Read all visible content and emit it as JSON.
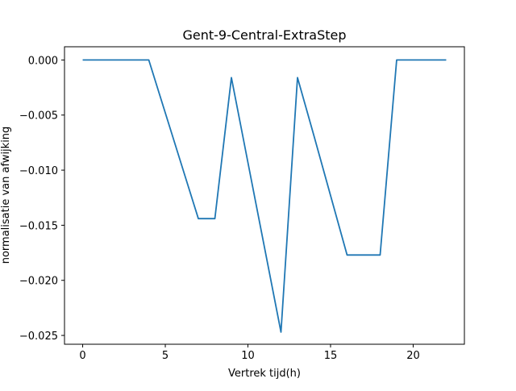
{
  "chart_data": {
    "type": "line",
    "title": "Gent-9-Central-ExtraStep",
    "xlabel": "Vertrek tijd(h)",
    "ylabel": "normalisatie van afwijking",
    "xlim": [
      -1.1,
      23.1
    ],
    "ylim": [
      -0.0258,
      0.0012
    ],
    "xticks": [
      0,
      5,
      10,
      15,
      20
    ],
    "xtick_labels": [
      "0",
      "5",
      "10",
      "15",
      "20"
    ],
    "yticks": [
      0.0,
      -0.005,
      -0.01,
      -0.015,
      -0.02,
      -0.025
    ],
    "ytick_labels": [
      "0.000",
      "−0.005",
      "−0.010",
      "−0.015",
      "−0.020",
      "−0.025"
    ],
    "grid": false,
    "series": [
      {
        "color": "#1f77b4",
        "x": [
          0,
          1,
          2,
          3,
          4,
          5,
          6,
          7,
          8,
          9,
          10,
          11,
          12,
          13,
          14,
          15,
          16,
          17,
          18,
          19,
          20,
          21,
          22
        ],
        "y": [
          0.0,
          0.0,
          0.0,
          0.0,
          0.0,
          -0.0048,
          -0.0096,
          -0.0144,
          -0.0144,
          -0.0016,
          -0.0093,
          -0.017,
          -0.0247,
          -0.0016,
          -0.0069,
          -0.0123,
          -0.0177,
          -0.0177,
          -0.0177,
          0.0,
          0.0,
          0.0,
          0.0
        ]
      }
    ]
  }
}
